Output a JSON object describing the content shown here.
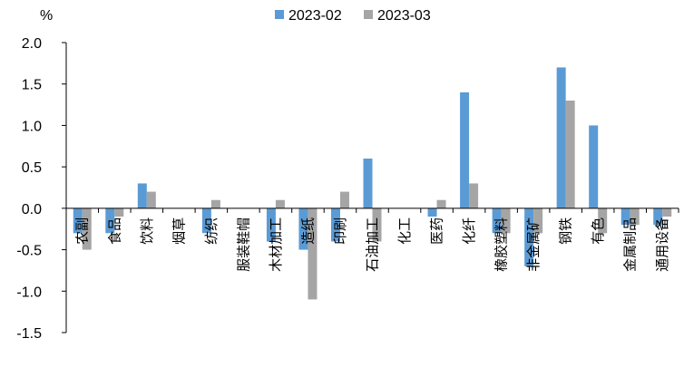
{
  "chart_data": {
    "type": "bar",
    "unit_label": "%",
    "categories": [
      "农副",
      "食品",
      "饮料",
      "烟草",
      "纺织",
      "服装鞋帽",
      "木材加工",
      "造纸",
      "印刷",
      "石油加工",
      "化工",
      "医药",
      "化纤",
      "橡胶塑料",
      "非金属矿",
      "钢铁",
      "有色",
      "金属制品",
      "通用设备"
    ],
    "series": [
      {
        "name": "2023-02",
        "color": "#5B9BD5",
        "values": [
          -0.3,
          -0.3,
          0.3,
          0.0,
          -0.3,
          0.0,
          -0.4,
          -0.5,
          -0.4,
          0.6,
          0.0,
          -0.1,
          1.4,
          -0.3,
          -0.7,
          1.7,
          1.0,
          -0.2,
          -0.2
        ]
      },
      {
        "name": "2023-03",
        "color": "#A5A5A5",
        "values": [
          -0.5,
          -0.1,
          0.2,
          0.0,
          0.1,
          0.0,
          0.1,
          -1.1,
          0.2,
          -0.4,
          0.0,
          0.1,
          0.3,
          -0.3,
          -0.3,
          1.3,
          -0.3,
          -0.2,
          -0.1
        ]
      }
    ],
    "ylim": [
      -1.5,
      2.0
    ],
    "yticks": [
      "2.0",
      "1.5",
      "1.0",
      "0.5",
      "0.0",
      "-0.5",
      "-1.0",
      "-1.5"
    ],
    "ytick_values": [
      2.0,
      1.5,
      1.0,
      0.5,
      0.0,
      -0.5,
      -1.0,
      -1.5
    ],
    "legend_position": "top-center",
    "grid": false
  }
}
